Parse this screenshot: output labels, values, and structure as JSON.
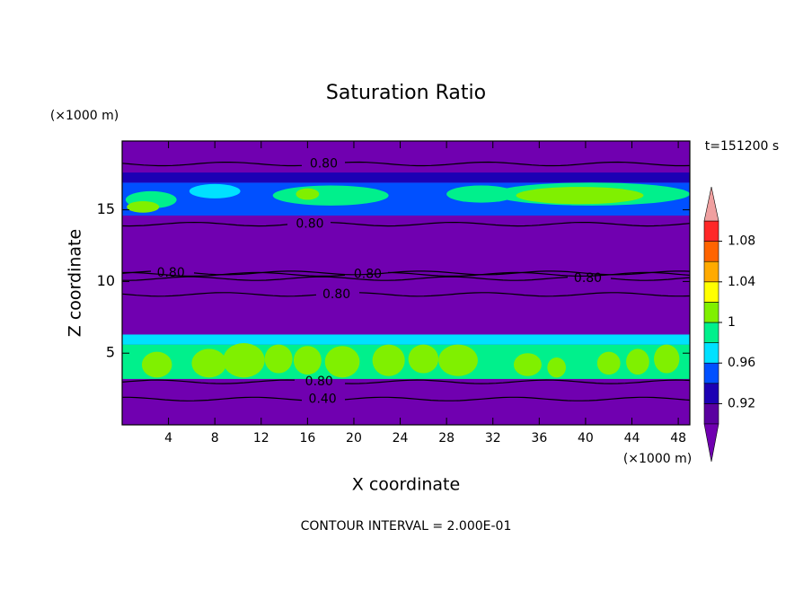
{
  "chart_data": {
    "type": "contour",
    "title": "Saturation Ratio",
    "y_unit": "(×1000 m)",
    "x_unit": "(×1000 m)",
    "time_label": "t=151200 s",
    "xlabel": "X coordinate",
    "ylabel": "Z coordinate",
    "footer": "CONTOUR INTERVAL = 2.000E-01",
    "xlim": [
      0,
      49
    ],
    "ylim": [
      0,
      19.8
    ],
    "xticks": [
      4,
      8,
      12,
      16,
      20,
      24,
      28,
      32,
      36,
      40,
      44,
      48
    ],
    "yticks": [
      5,
      10,
      15
    ],
    "colorbar": {
      "levels": [
        0.9,
        0.92,
        0.94,
        0.96,
        0.98,
        1,
        1.02,
        1.04,
        1.06,
        1.08,
        1.1
      ],
      "colors": [
        "#7000b0",
        "#5a00a0",
        "#1c00b4",
        "#0050ff",
        "#00e1ff",
        "#00f08c",
        "#80f000",
        "#ffff00",
        "#ffaa00",
        "#ff6400",
        "#ff2828",
        "#f0a0a0"
      ],
      "ticks": [
        0.92,
        0.96,
        1,
        1.04,
        1.08
      ]
    },
    "field": [
      {
        "z": [
          3.2,
          5.6
        ],
        "value": 0.99
      },
      {
        "z": [
          5.6,
          6.3
        ],
        "value": 0.97
      },
      {
        "z": [
          14.6,
          16.9
        ],
        "value": 0.95
      },
      {
        "z": [
          16.9,
          17.6
        ],
        "value": 0.93
      }
    ],
    "blobs": [
      {
        "x": 2.5,
        "z": 15.7,
        "rx": 2.2,
        "rz": 0.6,
        "value": 0.99
      },
      {
        "x": 8,
        "z": 16.3,
        "rx": 2.2,
        "rz": 0.5,
        "value": 0.97
      },
      {
        "x": 18,
        "z": 16,
        "rx": 5,
        "rz": 0.7,
        "value": 0.99
      },
      {
        "x": 31,
        "z": 16.1,
        "rx": 3,
        "rz": 0.6,
        "value": 0.99
      },
      {
        "x": 40.5,
        "z": 16.1,
        "rx": 8.5,
        "rz": 0.8,
        "value": 0.99
      },
      {
        "x": 1.8,
        "z": 15.2,
        "rx": 1.4,
        "rz": 0.4,
        "value": 1.01
      },
      {
        "x": 16,
        "z": 16.1,
        "rx": 1,
        "rz": 0.4,
        "value": 1.01
      },
      {
        "x": 39.5,
        "z": 16,
        "rx": 5.5,
        "rz": 0.6,
        "value": 1.01
      },
      {
        "x": 3,
        "z": 4.2,
        "rx": 1.3,
        "rz": 0.9,
        "value": 1.01
      },
      {
        "x": 7.5,
        "z": 4.3,
        "rx": 1.5,
        "rz": 1,
        "value": 1.01
      },
      {
        "x": 10.5,
        "z": 4.5,
        "rx": 1.8,
        "rz": 1.2,
        "value": 1.01
      },
      {
        "x": 13.5,
        "z": 4.6,
        "rx": 1.2,
        "rz": 1,
        "value": 1.01
      },
      {
        "x": 16,
        "z": 4.5,
        "rx": 1.2,
        "rz": 1,
        "value": 1.01
      },
      {
        "x": 19,
        "z": 4.4,
        "rx": 1.5,
        "rz": 1.1,
        "value": 1.01
      },
      {
        "x": 23,
        "z": 4.5,
        "rx": 1.4,
        "rz": 1.1,
        "value": 1.01
      },
      {
        "x": 26,
        "z": 4.6,
        "rx": 1.3,
        "rz": 1,
        "value": 1.01
      },
      {
        "x": 29,
        "z": 4.5,
        "rx": 1.7,
        "rz": 1.1,
        "value": 1.01
      },
      {
        "x": 35,
        "z": 4.2,
        "rx": 1.2,
        "rz": 0.8,
        "value": 1.01
      },
      {
        "x": 37.5,
        "z": 4,
        "rx": 0.8,
        "rz": 0.7,
        "value": 1.01
      },
      {
        "x": 42,
        "z": 4.3,
        "rx": 1,
        "rz": 0.8,
        "value": 1.01
      },
      {
        "x": 44.5,
        "z": 4.4,
        "rx": 1,
        "rz": 0.9,
        "value": 1.01
      },
      {
        "x": 47,
        "z": 4.6,
        "rx": 1.1,
        "rz": 1,
        "value": 1.01
      }
    ],
    "contours": [
      {
        "level": 0.8,
        "label": "0.80",
        "z": 18.2,
        "x": 17.4
      },
      {
        "level": 0.8,
        "label": "0.80",
        "z": 14,
        "x": 16.2
      },
      {
        "level": 0.8,
        "label": "0.80",
        "z": 10.6,
        "x": 4.2
      },
      {
        "level": 0.8,
        "label": "0.80",
        "z": 10.5,
        "x": 21.2
      },
      {
        "level": 0.8,
        "label": "0.80",
        "z": 9.1,
        "x": 18.5
      },
      {
        "level": 0.8,
        "label": "0.80",
        "z": 10.2,
        "x": 40.2
      },
      {
        "level": 0.8,
        "label": "0.80",
        "z": 3,
        "x": 17
      },
      {
        "level": 0.4,
        "label": "0.40",
        "z": 1.8,
        "x": 17.3
      }
    ]
  }
}
